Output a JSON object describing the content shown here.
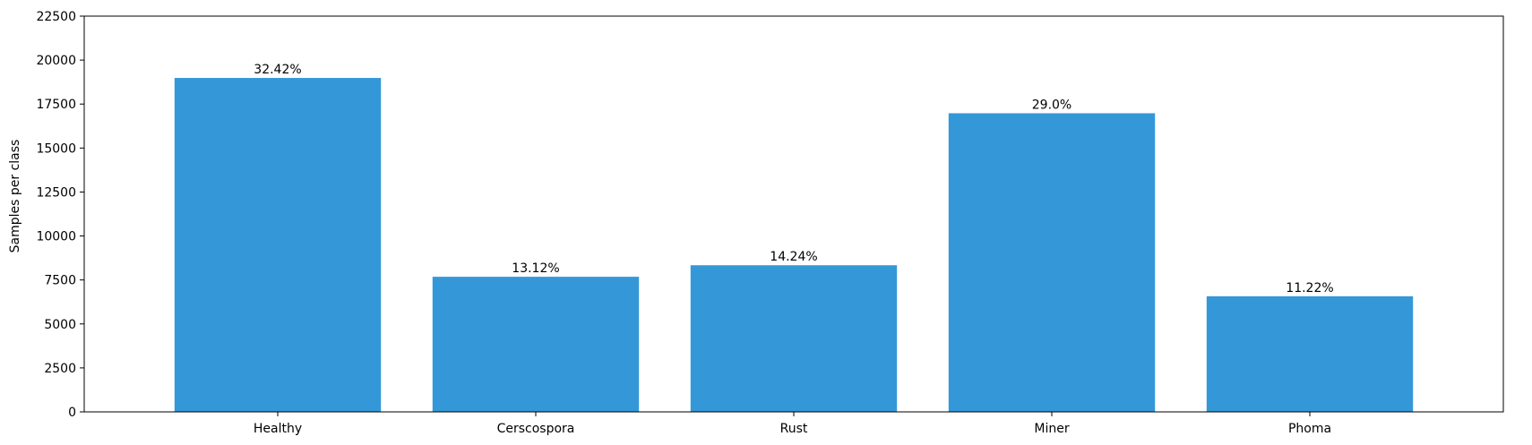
{
  "chart_data": {
    "type": "bar",
    "title": "",
    "xlabel": "",
    "ylabel": "Samples per class",
    "ylim": [
      0,
      22500
    ],
    "yticks": [
      0,
      2500,
      5000,
      7500,
      10000,
      12500,
      15000,
      17500,
      20000,
      22500
    ],
    "grid": false,
    "categories": [
      "Healthy",
      "Cerscospora",
      "Rust",
      "Miner",
      "Phoma"
    ],
    "values": [
      18985,
      7681,
      8336,
      16978,
      6572
    ],
    "data_labels": [
      "32.42%",
      "13.12%",
      "14.24%",
      "29.0%",
      "11.22%"
    ],
    "colors": {
      "bar": "#3498d8",
      "axis": "#000000"
    }
  }
}
